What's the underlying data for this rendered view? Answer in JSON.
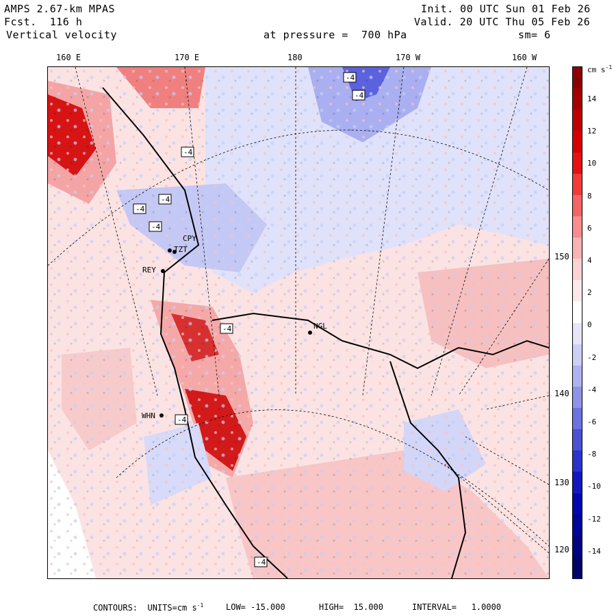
{
  "header": {
    "model": "AMPS 2.67-km MPAS",
    "fcst": "Fcst.  116 h",
    "field": "Vertical velocity",
    "init": "Init. 00 UTC Sun 01 Feb 26",
    "valid": "Valid. 20 UTC Thu 05 Feb 26",
    "level": "at pressure =  700 hPa",
    "smooth": "sm= 6"
  },
  "map": {
    "top_longitudes": [
      "160 E",
      "170 E",
      "180",
      "170 W",
      "160 W"
    ],
    "right_longitudes": [
      "150 W",
      "140 W",
      "130 W",
      "120 W"
    ],
    "stations": [
      "CPY",
      "TZT",
      "REY",
      "NGL",
      "WHN"
    ],
    "contour_label": "-4"
  },
  "colorbar": {
    "units": "cm s",
    "units_exp": "-1",
    "labels": [
      "14",
      "12",
      "10",
      "8",
      "6",
      "4",
      "2",
      "0",
      "-2",
      "-4",
      "-6",
      "-8",
      "-10",
      "-12",
      "-14"
    ],
    "colors": [
      "#8b0000",
      "#a50000",
      "#bf0000",
      "#d60000",
      "#e81010",
      "#f23a3a",
      "#f66464",
      "#f98c8c",
      "#fbb2b2",
      "#fdd2d2",
      "#fde8e8",
      "#ffffff",
      "#e6e6fb",
      "#cdd0f6",
      "#aeb3ef",
      "#8e94e8",
      "#6c73e0",
      "#4b52d6",
      "#2c33cc",
      "#1218bf",
      "#0008ae",
      "#00069a",
      "#000580",
      "#000466"
    ]
  },
  "footer": {
    "contours": "CONTOURS:  UNITS=cm s",
    "units_exp": "-1",
    "low": "LOW= -15.000",
    "high": "HIGH=  15.000",
    "interval": "INTERVAL=   1.0000"
  }
}
